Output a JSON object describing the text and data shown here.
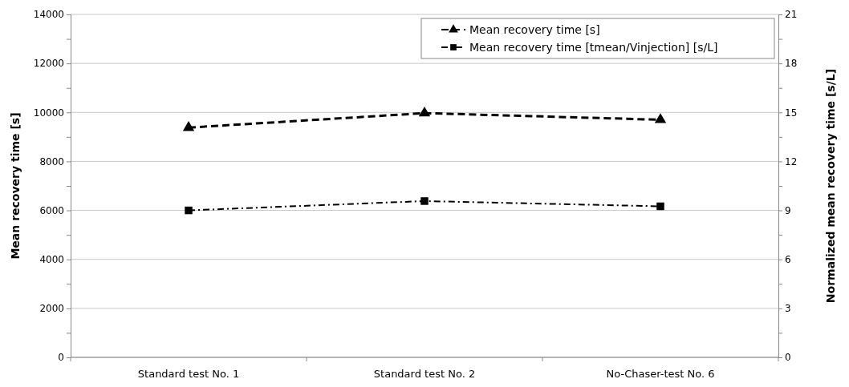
{
  "chart_data": {
    "type": "line",
    "ylabel": "Mean recovery time [s]",
    "y2label": "Normalized mean recovery time [s/L]",
    "categories": [
      "Standard test No. 1",
      "Standard test No. 2",
      "No-Chaser-test No. 6"
    ],
    "series": [
      {
        "name": "Mean recovery  time [s]",
        "color": "#000000",
        "values": [
          9380,
          9970,
          9700
        ],
        "marker": "triangle",
        "line_style": "dashed"
      },
      {
        "name": "Mean recovery  time [tmean/Vinjection] [s/L]",
        "color": "#000000",
        "values": [
          9.0,
          9.57,
          9.25
        ],
        "marker": "square",
        "line_style": "dotted",
        "axis": "y2"
      }
    ],
    "ylim": [
      0,
      14000
    ],
    "yticks": [
      0,
      {
        "value": 1000,
        "label": null
      },
      2000,
      {
        "value": 3000,
        "label": null
      },
      4000,
      {
        "value": 5000,
        "label": null
      },
      6000,
      {
        "value": 7000,
        "label": null
      },
      8000,
      {
        "value": 9000,
        "label": null
      },
      10000,
      {
        "value": 11000,
        "label": null
      },
      12000,
      {
        "value": 13000,
        "label": null
      },
      14000
    ],
    "y2lim": [
      0,
      21
    ],
    "y2ticks": [
      0,
      {
        "value": 1.5,
        "label": null
      },
      3,
      {
        "value": 4.5,
        "label": null
      },
      6,
      {
        "value": 7.5,
        "label": null
      },
      9,
      {
        "value": 10.5,
        "label": null
      },
      12,
      {
        "value": 13.5,
        "label": null
      },
      15,
      {
        "value": 16.5,
        "label": null
      },
      18,
      {
        "value": 19.5,
        "label": null
      },
      21
    ],
    "grid": "y",
    "legend": "top right"
  }
}
